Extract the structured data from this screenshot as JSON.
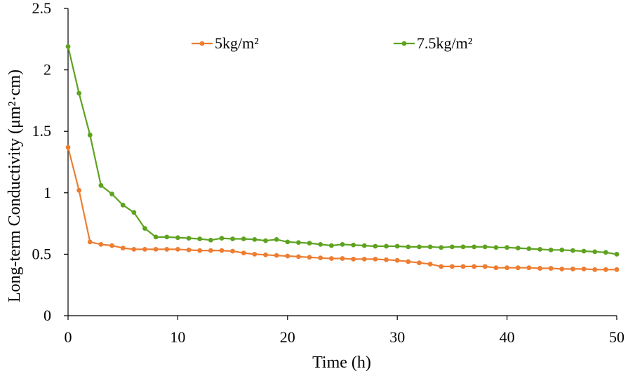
{
  "chart_data": {
    "type": "line",
    "title": "",
    "xlabel": "Time (h)",
    "ylabel": "Long-term Conductivity (μm²·cm)",
    "xlim": [
      0,
      50
    ],
    "ylim": [
      0,
      2.5
    ],
    "xticks": [
      0,
      10,
      20,
      30,
      40,
      50
    ],
    "yticks": [
      0,
      0.5,
      1,
      1.5,
      2,
      2.5
    ],
    "xtick_labels": [
      "0",
      "10",
      "20",
      "30",
      "40",
      "50"
    ],
    "ytick_labels": [
      "0",
      "0.5",
      "1",
      "1.5",
      "2",
      "2.5"
    ],
    "grid": false,
    "legend_position": "top",
    "x": [
      0,
      1,
      2,
      3,
      4,
      5,
      6,
      7,
      8,
      9,
      10,
      11,
      12,
      13,
      14,
      15,
      16,
      17,
      18,
      19,
      20,
      21,
      22,
      23,
      24,
      25,
      26,
      27,
      28,
      29,
      30,
      31,
      32,
      33,
      34,
      35,
      36,
      37,
      38,
      39,
      40,
      41,
      42,
      43,
      44,
      45,
      46,
      47,
      48,
      49,
      50
    ],
    "series": [
      {
        "name": "5kg/m²",
        "color": "#ED7D31",
        "values": [
          1.37,
          1.02,
          0.6,
          0.58,
          0.57,
          0.55,
          0.54,
          0.54,
          0.54,
          0.54,
          0.54,
          0.535,
          0.53,
          0.53,
          0.53,
          0.525,
          0.51,
          0.5,
          0.495,
          0.49,
          0.485,
          0.48,
          0.475,
          0.47,
          0.465,
          0.465,
          0.46,
          0.46,
          0.46,
          0.455,
          0.45,
          0.44,
          0.43,
          0.42,
          0.4,
          0.4,
          0.4,
          0.4,
          0.4,
          0.39,
          0.39,
          0.39,
          0.39,
          0.385,
          0.385,
          0.38,
          0.38,
          0.38,
          0.375,
          0.375,
          0.375
        ]
      },
      {
        "name": "7.5kg/m²",
        "color": "#5EA320",
        "values": [
          2.19,
          1.81,
          1.47,
          1.06,
          0.99,
          0.9,
          0.84,
          0.71,
          0.64,
          0.64,
          0.635,
          0.63,
          0.625,
          0.615,
          0.63,
          0.625,
          0.625,
          0.62,
          0.61,
          0.62,
          0.6,
          0.595,
          0.59,
          0.58,
          0.57,
          0.58,
          0.575,
          0.57,
          0.565,
          0.565,
          0.565,
          0.56,
          0.56,
          0.56,
          0.555,
          0.56,
          0.56,
          0.56,
          0.56,
          0.555,
          0.555,
          0.55,
          0.545,
          0.54,
          0.535,
          0.535,
          0.53,
          0.525,
          0.52,
          0.515,
          0.5
        ]
      }
    ]
  }
}
